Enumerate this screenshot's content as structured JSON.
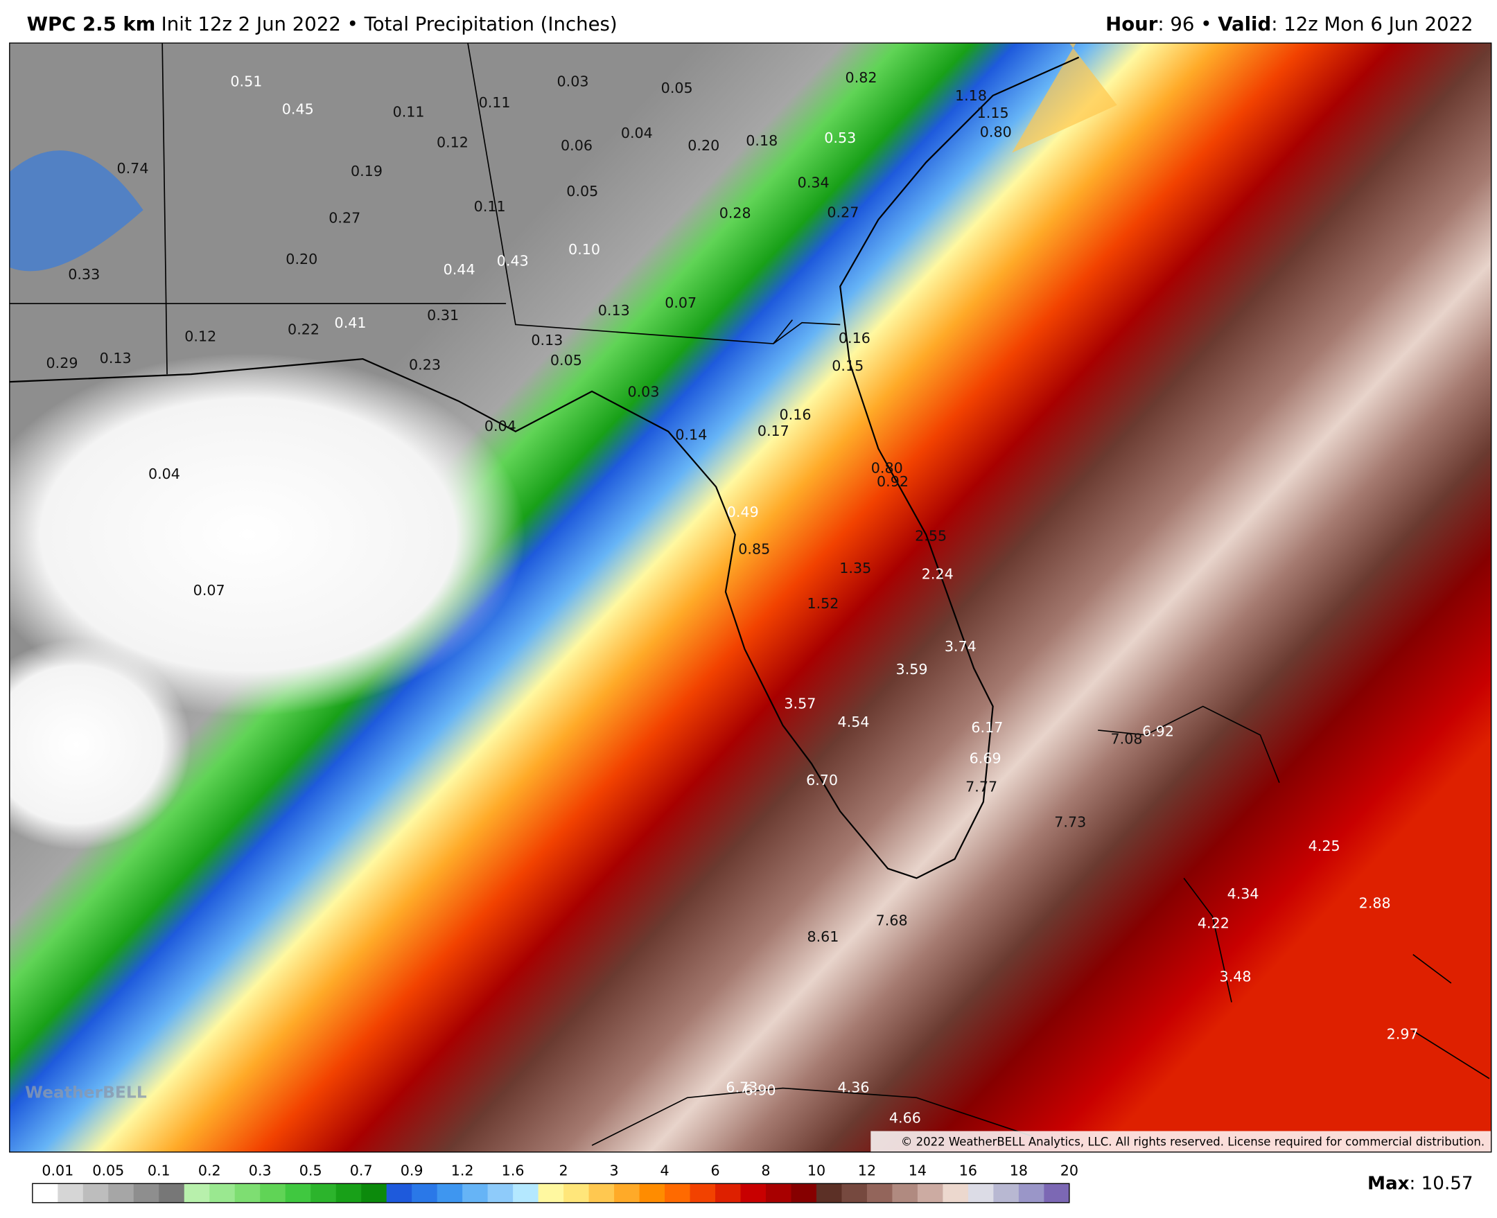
{
  "header": {
    "model": "WPC 2.5 km",
    "run": "Init 12z 2 Jun 2022 • Total Precipitation (Inches)",
    "hour_key": "Hour",
    "hour_value": ": 96 • ",
    "valid_key": "Valid",
    "valid_value": ": 12z Mon 6 Jun 2022"
  },
  "labels": [
    "0.51",
    "0.45",
    "0.11",
    "0.11",
    "0.03",
    "0.05",
    "0.82",
    "1.18",
    "1.15",
    "0.80",
    "0.74",
    "0.19",
    "0.12",
    "0.06",
    "0.04",
    "0.20",
    "0.18",
    "0.53",
    "0.34",
    "0.27",
    "0.05",
    "0.11",
    "0.28",
    "0.27",
    "0.20",
    "0.44",
    "0.43",
    "0.10",
    "0.33",
    "0.22",
    "0.41",
    "0.31",
    "0.13",
    "0.07",
    "0.12",
    "0.13",
    "0.16",
    "0.29",
    "0.13",
    "0.23",
    "0.05",
    "0.15",
    "0.03",
    "0.04",
    "0.14",
    "0.17",
    "0.16",
    "0.04",
    "0.80",
    "0.92",
    "0.49",
    "0.85",
    "1.35",
    "2.55",
    "2.24",
    "0.07",
    "1.52",
    "3.74",
    "3.59",
    "3.57",
    "4.54",
    "6.17",
    "7.08",
    "6.92",
    "6.69",
    "6.70",
    "7.77",
    "7.73",
    "4.25",
    "4.34",
    "2.88",
    "4.22",
    "7.68",
    "8.61",
    "3.48",
    "2.97",
    "6.73",
    "6.90",
    "4.36",
    "4.66"
  ],
  "watermark": "WeatherBELL",
  "copyright": "© 2022 WeatherBELL Analytics, LLC. All rights reserved. License required for commercial distribution.",
  "legend": {
    "ticks": [
      0.01,
      0.05,
      0.1,
      0.2,
      0.3,
      0.5,
      0.7,
      0.9,
      1.2,
      1.6,
      2,
      3,
      4,
      6,
      8,
      10,
      12,
      14,
      16,
      18,
      20
    ],
    "colors": [
      "#ffffff",
      "#d6d6d6",
      "#bdbdbd",
      "#a6a6a6",
      "#8e8e8e",
      "#777777",
      "#b8f0ac",
      "#9ae890",
      "#7ede72",
      "#60d456",
      "#40c840",
      "#2cb42c",
      "#18a018",
      "#0c8a0c",
      "#1e5adc",
      "#2a78e8",
      "#3e96f0",
      "#66b4f6",
      "#8ecbfa",
      "#b4e8ff",
      "#fff8a0",
      "#ffe67a",
      "#ffc850",
      "#ffaa28",
      "#ff8c00",
      "#ff6a00",
      "#f24200",
      "#de2000",
      "#c80000",
      "#a80000",
      "#860000",
      "#5c3026",
      "#76493f",
      "#93655b",
      "#b08a80",
      "#ccaba2",
      "#ecd8ce",
      "#dcdce6",
      "#b8b8d2",
      "#9a96c8",
      "#7c68b4"
    ],
    "max_key": "Max",
    "max_value": ": 10.57"
  }
}
